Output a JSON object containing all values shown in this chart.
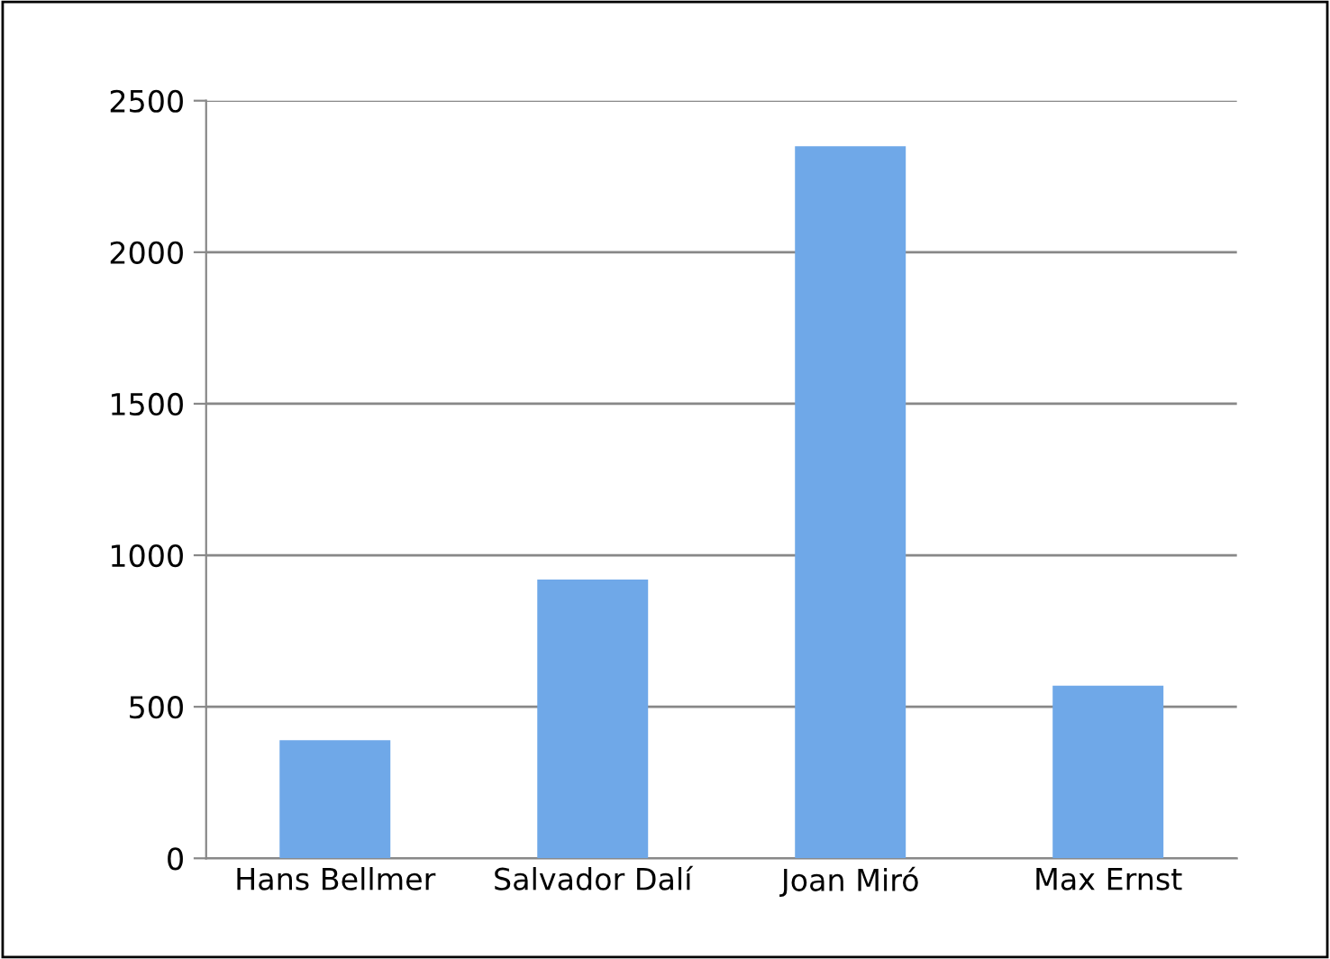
{
  "chart_data": {
    "type": "bar",
    "categories": [
      "Hans Bellmer",
      "Salvador Dalí",
      "Joan Miró",
      "Max Ernst"
    ],
    "values": [
      390,
      920,
      2350,
      570
    ],
    "color": "#6fa8e8",
    "ylim": [
      0,
      2500
    ],
    "yticks": [
      0,
      500,
      1000,
      1500,
      2000,
      2500
    ],
    "grid": "y",
    "legend": false
  }
}
